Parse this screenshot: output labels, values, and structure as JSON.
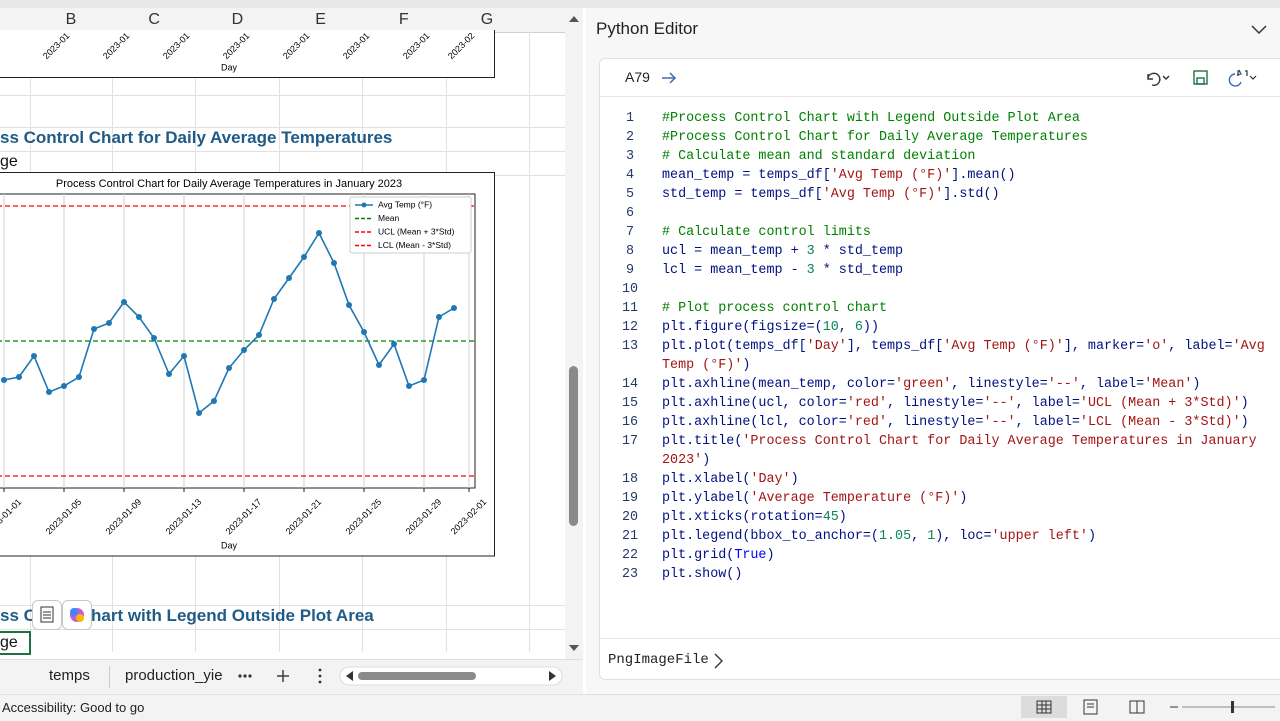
{
  "sheet": {
    "columns": [
      "B",
      "C",
      "D",
      "E",
      "F",
      "G"
    ],
    "top_chart": {
      "tick_labels": [
        "2023-01",
        "2023-01",
        "2023-01",
        "2023-01",
        "2023-01",
        "2023-01",
        "2023-01",
        "2023-02"
      ],
      "xlabel": "Day"
    },
    "heading_1": "ss Control Chart for Daily Average Temperatures",
    "cell_1": "ge",
    "heading_2_start": "ss Co",
    "heading_2_end": "hart with Legend Outside Plot Area",
    "cell_2": "ge",
    "tabs": [
      "temps",
      "production_yie"
    ],
    "status": "Accessibility: Good to go"
  },
  "chart_data": {
    "type": "line",
    "title": "Process Control Chart for Daily Average Temperatures in January 2023",
    "xlabel": "Day",
    "x": [
      "2023-01-01",
      "2023-01-02",
      "2023-01-03",
      "2023-01-04",
      "2023-01-05",
      "2023-01-06",
      "2023-01-07",
      "2023-01-08",
      "2023-01-09",
      "2023-01-10",
      "2023-01-11",
      "2023-01-12",
      "2023-01-13",
      "2023-01-14",
      "2023-01-15",
      "2023-01-16",
      "2023-01-17",
      "2023-01-18",
      "2023-01-19",
      "2023-01-20",
      "2023-01-21",
      "2023-01-22",
      "2023-01-23",
      "2023-01-24",
      "2023-01-25",
      "2023-01-26",
      "2023-01-27",
      "2023-01-28",
      "2023-01-29",
      "2023-01-30",
      "2023-01-31"
    ],
    "series": [
      {
        "name": "Avg Temp (°F)",
        "color": "#1f77b4",
        "values": [
          36,
          37,
          44,
          32,
          34,
          37,
          53,
          55,
          62,
          57,
          50,
          38,
          44,
          25,
          29,
          40,
          46,
          51,
          63,
          70,
          77,
          85,
          75,
          61,
          52,
          41,
          48,
          34,
          36,
          57,
          60
        ]
      }
    ],
    "hlines": [
      {
        "name": "Mean",
        "color": "#008000",
        "value": 49
      },
      {
        "name": "UCL (Mean + 3*Std)",
        "color": "#ff0000",
        "value": 94
      },
      {
        "name": "LCL (Mean - 3*Std)",
        "color": "#ff0000",
        "value": 4
      }
    ],
    "xlim": [
      "2022-12-31",
      "2023-02-01"
    ],
    "xticks": [
      "2023-01-01",
      "2023-01-05",
      "2023-01-09",
      "2023-01-13",
      "2023-01-17",
      "2023-01-21",
      "2023-01-25",
      "2023-01-29",
      "2023-02-01"
    ],
    "ylim": [
      0,
      98
    ],
    "grid": true,
    "legend": "upper right"
  },
  "editor": {
    "title": "Python Editor",
    "cell_ref": "A79",
    "output": "PngImageFile",
    "lines": [
      {
        "n": "1",
        "rows": [
          [
            [
              "#Process Control Chart with Legend Outside Plot Area",
              "#008000"
            ]
          ]
        ]
      },
      {
        "n": "2",
        "rows": [
          [
            [
              "#Process Control Chart for Daily Average Temperatures",
              "#008000"
            ]
          ]
        ]
      },
      {
        "n": "3",
        "rows": [
          [
            [
              "# Calculate mean and standard deviation",
              "#008000"
            ]
          ]
        ]
      },
      {
        "n": "4",
        "rows": [
          [
            [
              "mean_temp = temps_df[",
              "#001080"
            ],
            [
              "'Avg Temp (°F)'",
              "#a31515"
            ],
            [
              "].mean()",
              "#001080"
            ]
          ]
        ]
      },
      {
        "n": "5",
        "rows": [
          [
            [
              "std_temp = temps_df[",
              "#001080"
            ],
            [
              "'Avg Temp (°F)'",
              "#a31515"
            ],
            [
              "].std()",
              "#001080"
            ]
          ]
        ]
      },
      {
        "n": "6",
        "rows": [
          []
        ]
      },
      {
        "n": "7",
        "rows": [
          [
            [
              "# Calculate control limits",
              "#008000"
            ]
          ]
        ]
      },
      {
        "n": "8",
        "rows": [
          [
            [
              "ucl = mean_temp + ",
              "#001080"
            ],
            [
              "3",
              "#098658"
            ],
            [
              " * std_temp",
              "#001080"
            ]
          ]
        ]
      },
      {
        "n": "9",
        "rows": [
          [
            [
              "lcl = mean_temp - ",
              "#001080"
            ],
            [
              "3",
              "#098658"
            ],
            [
              " * std_temp",
              "#001080"
            ]
          ]
        ]
      },
      {
        "n": "10",
        "rows": [
          []
        ]
      },
      {
        "n": "11",
        "rows": [
          [
            [
              "# Plot process control chart",
              "#008000"
            ]
          ]
        ]
      },
      {
        "n": "12",
        "rows": [
          [
            [
              "plt.figure(figsize=(",
              "#001080"
            ],
            [
              "10",
              "#098658"
            ],
            [
              ", ",
              "#001080"
            ],
            [
              "6",
              "#098658"
            ],
            [
              "))",
              "#001080"
            ]
          ]
        ]
      },
      {
        "n": "13",
        "rows": [
          [
            [
              "plt.plot(temps_df[",
              "#001080"
            ],
            [
              "'Day'",
              "#a31515"
            ],
            [
              "], temps_df[",
              "#001080"
            ],
            [
              "'Avg Temp (°F)'",
              "#a31515"
            ],
            [
              "], marker=",
              "#001080"
            ],
            [
              "'o'",
              "#a31515"
            ],
            [
              ", label=",
              "#001080"
            ],
            [
              "'Avg",
              "#a31515"
            ]
          ],
          [
            [
              "Temp (°F)'",
              "#a31515"
            ],
            [
              ")",
              "#001080"
            ]
          ]
        ]
      },
      {
        "n": "14",
        "rows": [
          [
            [
              "plt.axhline(mean_temp, color=",
              "#001080"
            ],
            [
              "'green'",
              "#a31515"
            ],
            [
              ", linestyle=",
              "#001080"
            ],
            [
              "'--'",
              "#a31515"
            ],
            [
              ", label=",
              "#001080"
            ],
            [
              "'Mean'",
              "#a31515"
            ],
            [
              ")",
              "#001080"
            ]
          ]
        ]
      },
      {
        "n": "15",
        "rows": [
          [
            [
              "plt.axhline(ucl, color=",
              "#001080"
            ],
            [
              "'red'",
              "#a31515"
            ],
            [
              ", linestyle=",
              "#001080"
            ],
            [
              "'--'",
              "#a31515"
            ],
            [
              ", label=",
              "#001080"
            ],
            [
              "'UCL (Mean + 3*Std)'",
              "#a31515"
            ],
            [
              ")",
              "#001080"
            ]
          ]
        ]
      },
      {
        "n": "16",
        "rows": [
          [
            [
              "plt.axhline(lcl, color=",
              "#001080"
            ],
            [
              "'red'",
              "#a31515"
            ],
            [
              ", linestyle=",
              "#001080"
            ],
            [
              "'--'",
              "#a31515"
            ],
            [
              ", label=",
              "#001080"
            ],
            [
              "'LCL (Mean - 3*Std)'",
              "#a31515"
            ],
            [
              ")",
              "#001080"
            ]
          ]
        ]
      },
      {
        "n": "17",
        "rows": [
          [
            [
              "plt.title(",
              "#001080"
            ],
            [
              "'Process Control Chart for Daily Average Temperatures in January",
              "#a31515"
            ]
          ],
          [
            [
              "2023'",
              "#a31515"
            ],
            [
              ")",
              "#001080"
            ]
          ]
        ]
      },
      {
        "n": "18",
        "rows": [
          [
            [
              "plt.xlabel(",
              "#001080"
            ],
            [
              "'Day'",
              "#a31515"
            ],
            [
              ")",
              "#001080"
            ]
          ]
        ]
      },
      {
        "n": "19",
        "rows": [
          [
            [
              "plt.ylabel(",
              "#001080"
            ],
            [
              "'Average Temperature (°F)'",
              "#a31515"
            ],
            [
              ")",
              "#001080"
            ]
          ]
        ]
      },
      {
        "n": "20",
        "rows": [
          [
            [
              "plt.xticks(rotation=",
              "#001080"
            ],
            [
              "45",
              "#098658"
            ],
            [
              ")",
              "#001080"
            ]
          ]
        ]
      },
      {
        "n": "21",
        "rows": [
          [
            [
              "plt.legend(bbox_to_anchor=(",
              "#001080"
            ],
            [
              "1.05",
              "#098658"
            ],
            [
              ", ",
              "#001080"
            ],
            [
              "1",
              "#098658"
            ],
            [
              "), loc=",
              "#001080"
            ],
            [
              "'upper left'",
              "#a31515"
            ],
            [
              ")",
              "#001080"
            ]
          ]
        ]
      },
      {
        "n": "22",
        "rows": [
          [
            [
              "plt.grid(",
              "#001080"
            ],
            [
              "True",
              "#0000ff"
            ],
            [
              ")",
              "#001080"
            ]
          ]
        ]
      },
      {
        "n": "23",
        "rows": [
          [
            [
              "plt.show()",
              "#001080"
            ]
          ]
        ]
      }
    ]
  }
}
